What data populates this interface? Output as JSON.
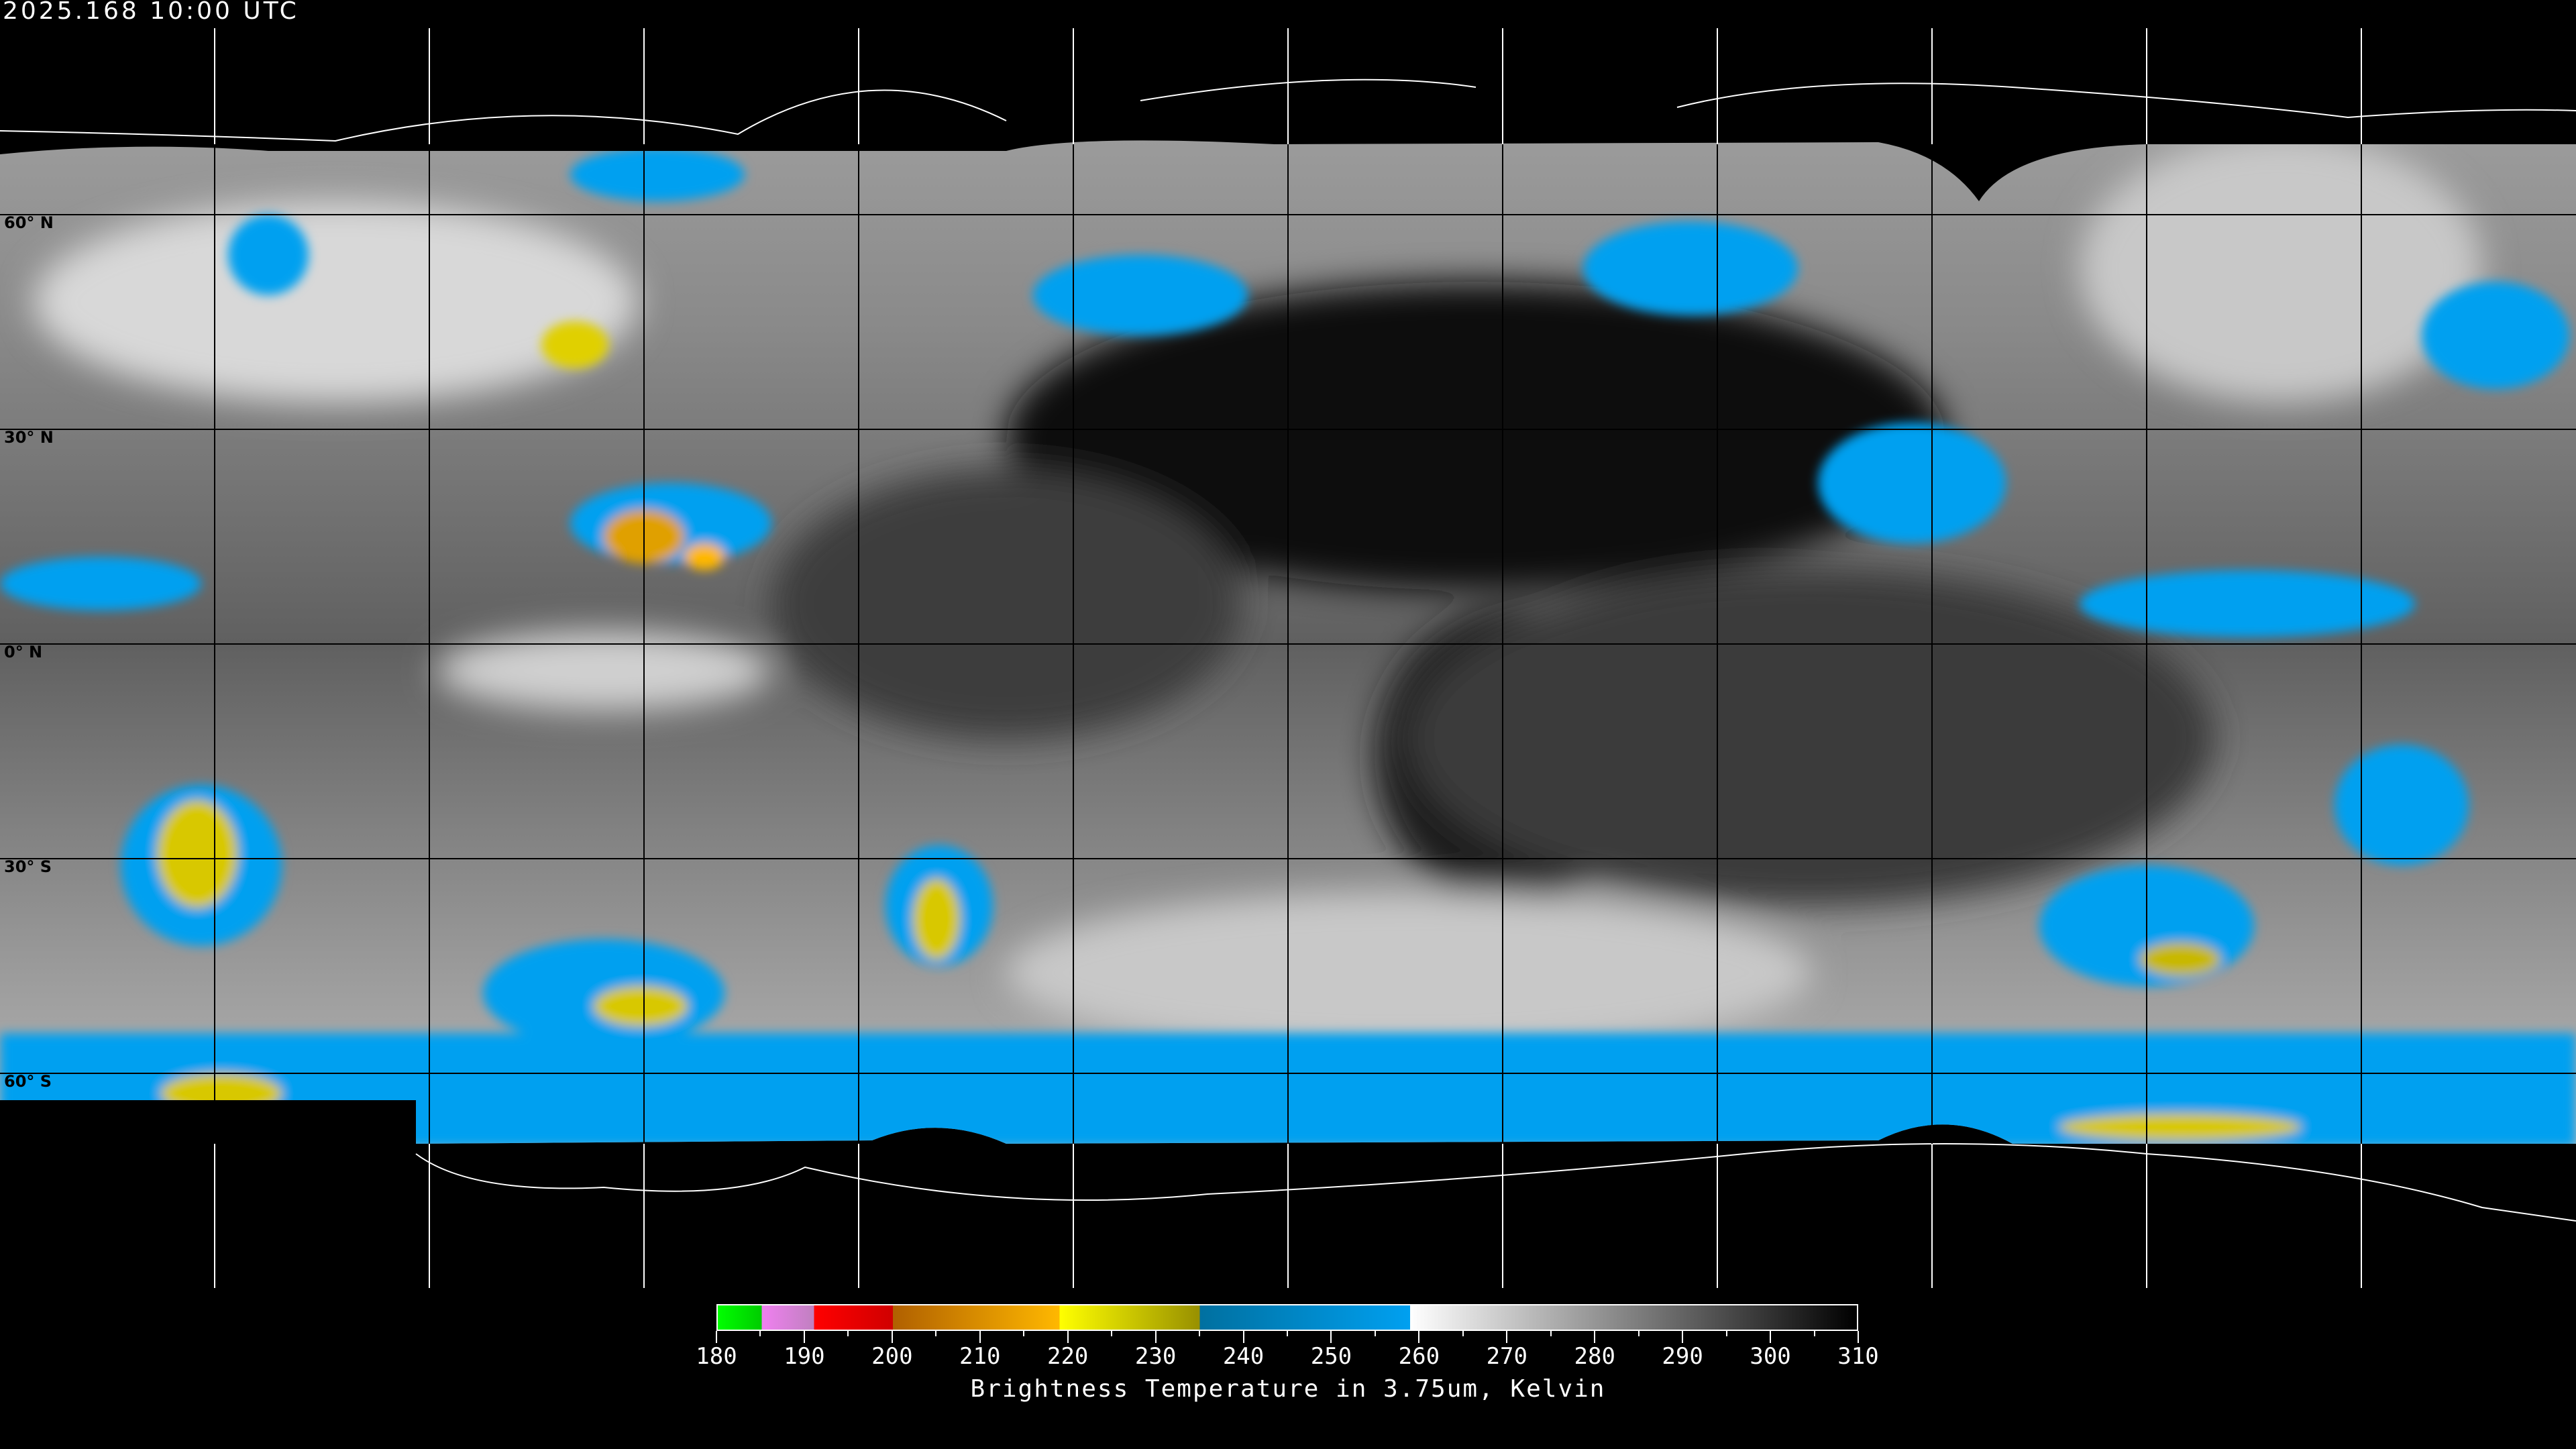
{
  "header": {
    "timestamp": "2025.168 10:00 UTC"
  },
  "map": {
    "projection": "equirectangular",
    "grid_longitude_step_deg": 30,
    "grid_latitude_step_deg": 30,
    "latitude_labels": [
      "60° N",
      "30° N",
      "0° N",
      "30° S",
      "60° S"
    ]
  },
  "colorbar": {
    "title": "Brightness Temperature in 3.75um, Kelvin",
    "min": 180,
    "max": 310,
    "tick_labels": [
      "180",
      "190",
      "200",
      "210",
      "220",
      "230",
      "240",
      "250",
      "260",
      "270",
      "280",
      "290",
      "300",
      "310"
    ],
    "segments": [
      {
        "from": 180,
        "to": 185,
        "colors": [
          "#00ff00",
          "#00cc00"
        ]
      },
      {
        "from": 185,
        "to": 191,
        "colors": [
          "#f080f0",
          "#c080c0"
        ]
      },
      {
        "from": 191,
        "to": 200,
        "colors": [
          "#ff0000",
          "#d00000"
        ]
      },
      {
        "from": 200,
        "to": 219,
        "colors": [
          "#b06000",
          "#ffb800"
        ]
      },
      {
        "from": 219,
        "to": 235,
        "colors": [
          "#ffff00",
          "#989000"
        ]
      },
      {
        "from": 235,
        "to": 259,
        "colors": [
          "#0070a0",
          "#00a0f0"
        ]
      },
      {
        "from": 259,
        "to": 310,
        "colors": [
          "#ffffff",
          "#000000"
        ]
      }
    ]
  }
}
